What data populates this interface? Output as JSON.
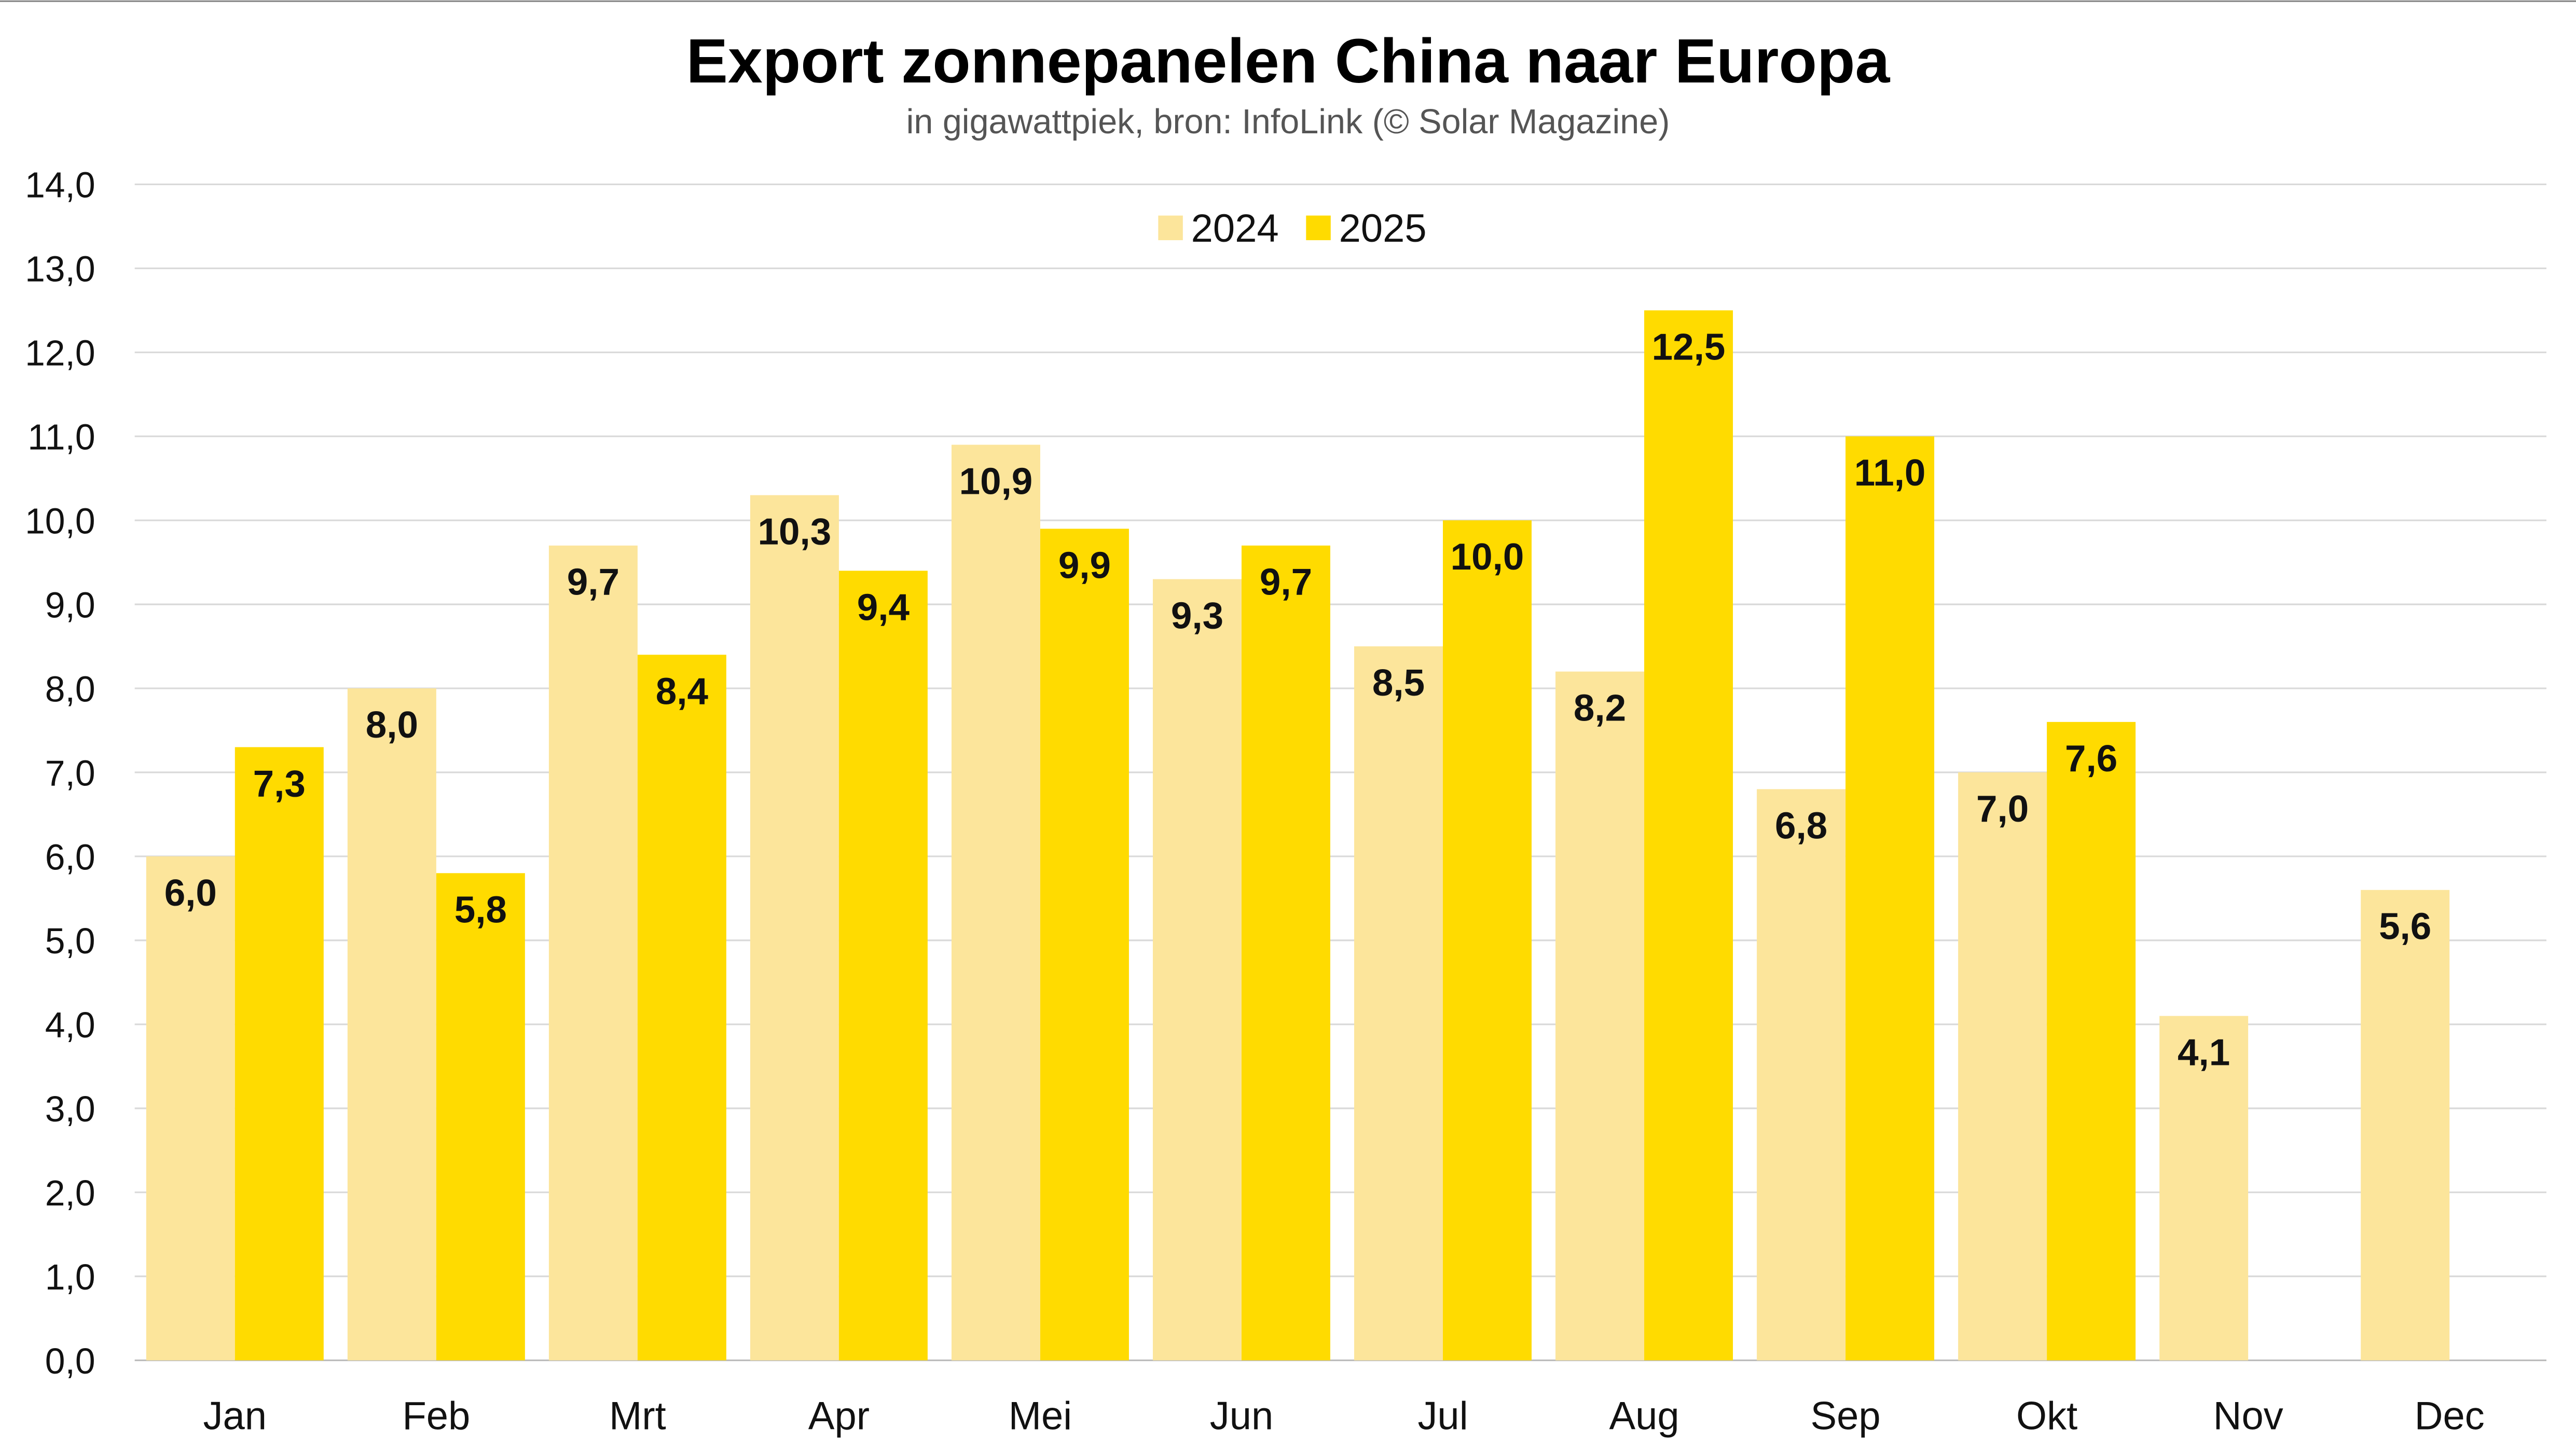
{
  "chart_data": {
    "type": "bar",
    "title": "Export zonnepanelen China naar Europa",
    "subtitle": "in gigawattpiek, bron: InfoLink (© Solar Magazine)",
    "categories": [
      "Jan",
      "Feb",
      "Mrt",
      "Apr",
      "Mei",
      "Jun",
      "Jul",
      "Aug",
      "Sep",
      "Okt",
      "Nov",
      "Dec"
    ],
    "series": [
      {
        "name": "2024",
        "color": "#FCE59B",
        "values": [
          6.0,
          8.0,
          9.7,
          10.3,
          10.9,
          9.3,
          8.5,
          8.2,
          6.8,
          7.0,
          4.1,
          5.6
        ]
      },
      {
        "name": "2025",
        "color": "#FFDB00",
        "values": [
          7.3,
          5.8,
          8.4,
          9.4,
          9.9,
          9.7,
          10.0,
          12.5,
          11.0,
          7.6,
          null,
          null
        ]
      }
    ],
    "ylim": [
      0,
      14
    ],
    "yticks": [
      "0,0",
      "1,0",
      "2,0",
      "3,0",
      "4,0",
      "5,0",
      "6,0",
      "7,0",
      "8,0",
      "9,0",
      "10,0",
      "11,0",
      "12,0",
      "13,0",
      "14,0"
    ],
    "xlabel": "",
    "ylabel": "",
    "grid": true,
    "legend": "top-center",
    "decimal_separator": ","
  }
}
